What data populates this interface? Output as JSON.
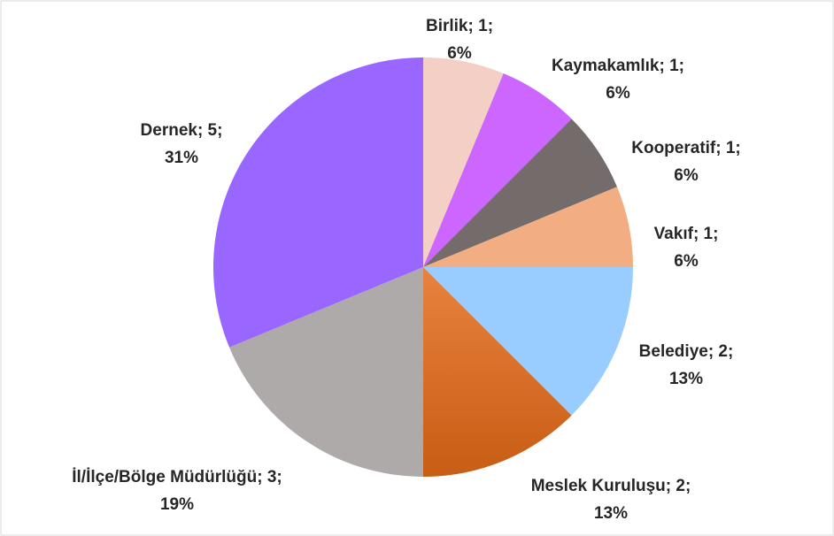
{
  "chart_data": {
    "type": "pie",
    "categories": [
      "Birlik",
      "Kaymakamlık",
      "Kooperatif",
      "Vakıf",
      "Belediye",
      "Meslek Kuruluşu",
      "İl/İlçe/Bölge Müdürlüğü",
      "Dernek"
    ],
    "values": [
      1,
      1,
      1,
      1,
      2,
      2,
      3,
      5
    ],
    "value_labels": [
      "; 1;",
      "; 1;",
      "; 1;",
      "; 1;",
      "; 2;",
      "; 2;",
      "; 3;",
      "; 5;"
    ],
    "percent_labels": [
      "6%",
      "6%",
      "6%",
      "6%",
      "13%",
      "13%",
      "19%",
      "31%"
    ],
    "colors": [
      "#f4cfc6",
      "#cc66ff",
      "#736c6b",
      "#f2ae82",
      "#99ccff",
      "#d9691f",
      "#aeaaaa",
      "#9966ff"
    ]
  }
}
